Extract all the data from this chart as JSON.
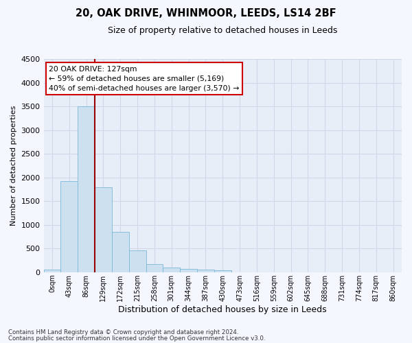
{
  "title": "20, OAK DRIVE, WHINMOOR, LEEDS, LS14 2BF",
  "subtitle": "Size of property relative to detached houses in Leeds",
  "xlabel": "Distribution of detached houses by size in Leeds",
  "ylabel": "Number of detached properties",
  "bar_color": "#cce0f0",
  "bar_edge_color": "#7ab8d8",
  "grid_color": "#d0d8e8",
  "background_color": "#e8eef8",
  "fig_background": "#f5f7ff",
  "vline_color": "#990000",
  "vline_x_index": 3,
  "annotation_text": "20 OAK DRIVE: 127sqm\n← 59% of detached houses are smaller (5,169)\n40% of semi-detached houses are larger (3,570) →",
  "annotation_box_facecolor": "#ffffff",
  "annotation_box_edgecolor": "#cc0000",
  "footnote1": "Contains HM Land Registry data © Crown copyright and database right 2024.",
  "footnote2": "Contains public sector information licensed under the Open Government Licence v3.0.",
  "ylim": [
    0,
    4500
  ],
  "yticks": [
    0,
    500,
    1000,
    1500,
    2000,
    2500,
    3000,
    3500,
    4000,
    4500
  ],
  "bin_labels": [
    "0sqm",
    "43sqm",
    "86sqm",
    "129sqm",
    "172sqm",
    "215sqm",
    "258sqm",
    "301sqm",
    "344sqm",
    "387sqm",
    "430sqm",
    "473sqm",
    "516sqm",
    "559sqm",
    "602sqm",
    "645sqm",
    "688sqm",
    "731sqm",
    "774sqm",
    "817sqm",
    "860sqm"
  ],
  "bar_heights": [
    50,
    1920,
    3510,
    1790,
    850,
    460,
    165,
    100,
    70,
    55,
    35,
    0,
    0,
    0,
    0,
    0,
    0,
    0,
    0,
    0,
    0
  ],
  "figsize": [
    6.0,
    5.0
  ],
  "dpi": 100
}
